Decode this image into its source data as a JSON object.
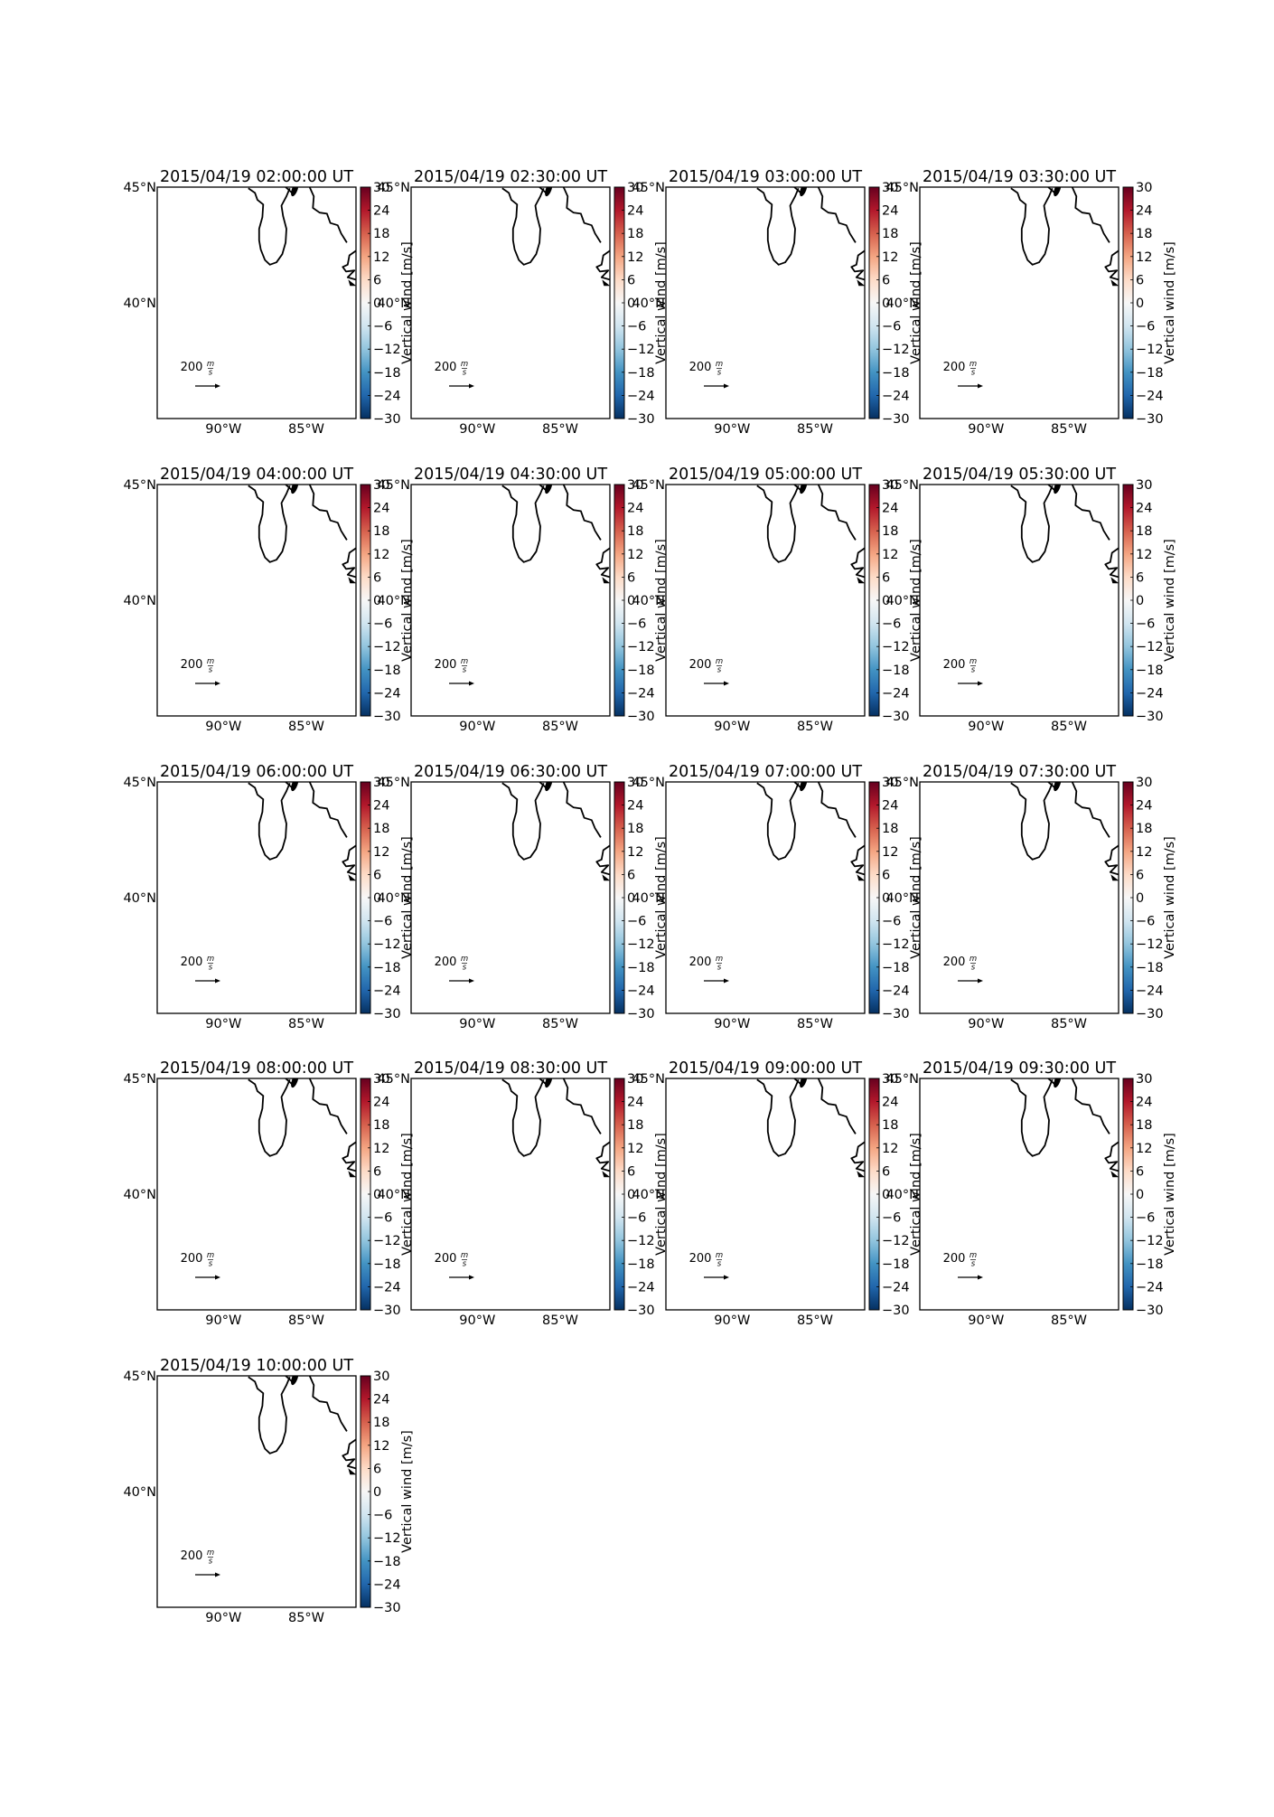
{
  "figure": {
    "map_extent": {
      "lon": [
        -94,
        -82
      ],
      "lat": [
        35,
        45
      ]
    },
    "lon_tick_labels": [
      "90°W",
      "85°W"
    ],
    "lat_tick_labels": [
      "45°N",
      "40°N"
    ],
    "quiver_key": {
      "value": "200",
      "unit_num": "m",
      "unit_den": "s"
    },
    "colorbar": {
      "label": "Vertical wind [m/s]",
      "colormap": "RdBu_r",
      "range": [
        -30,
        30
      ],
      "ticks": [
        "30",
        "24",
        "18",
        "12",
        "6",
        "0",
        "−6",
        "−12",
        "−18",
        "−24",
        "−30"
      ],
      "colors": [
        "#67001f",
        "#b2182b",
        "#d6604d",
        "#f4a582",
        "#fddbc7",
        "#f7f7f7",
        "#d1e5f0",
        "#92c5de",
        "#4393c3",
        "#2166ac",
        "#053061"
      ]
    },
    "panels": [
      {
        "title": "2015/04/19 02:00:00 UT"
      },
      {
        "title": "2015/04/19 02:30:00 UT"
      },
      {
        "title": "2015/04/19 03:00:00 UT"
      },
      {
        "title": "2015/04/19 03:30:00 UT"
      },
      {
        "title": "2015/04/19 04:00:00 UT"
      },
      {
        "title": "2015/04/19 04:30:00 UT"
      },
      {
        "title": "2015/04/19 05:00:00 UT"
      },
      {
        "title": "2015/04/19 05:30:00 UT"
      },
      {
        "title": "2015/04/19 06:00:00 UT"
      },
      {
        "title": "2015/04/19 06:30:00 UT"
      },
      {
        "title": "2015/04/19 07:00:00 UT"
      },
      {
        "title": "2015/04/19 07:30:00 UT"
      },
      {
        "title": "2015/04/19 08:00:00 UT"
      },
      {
        "title": "2015/04/19 08:30:00 UT"
      },
      {
        "title": "2015/04/19 09:00:00 UT"
      },
      {
        "title": "2015/04/19 09:30:00 UT"
      },
      {
        "title": "2015/04/19 10:00:00 UT"
      }
    ]
  }
}
